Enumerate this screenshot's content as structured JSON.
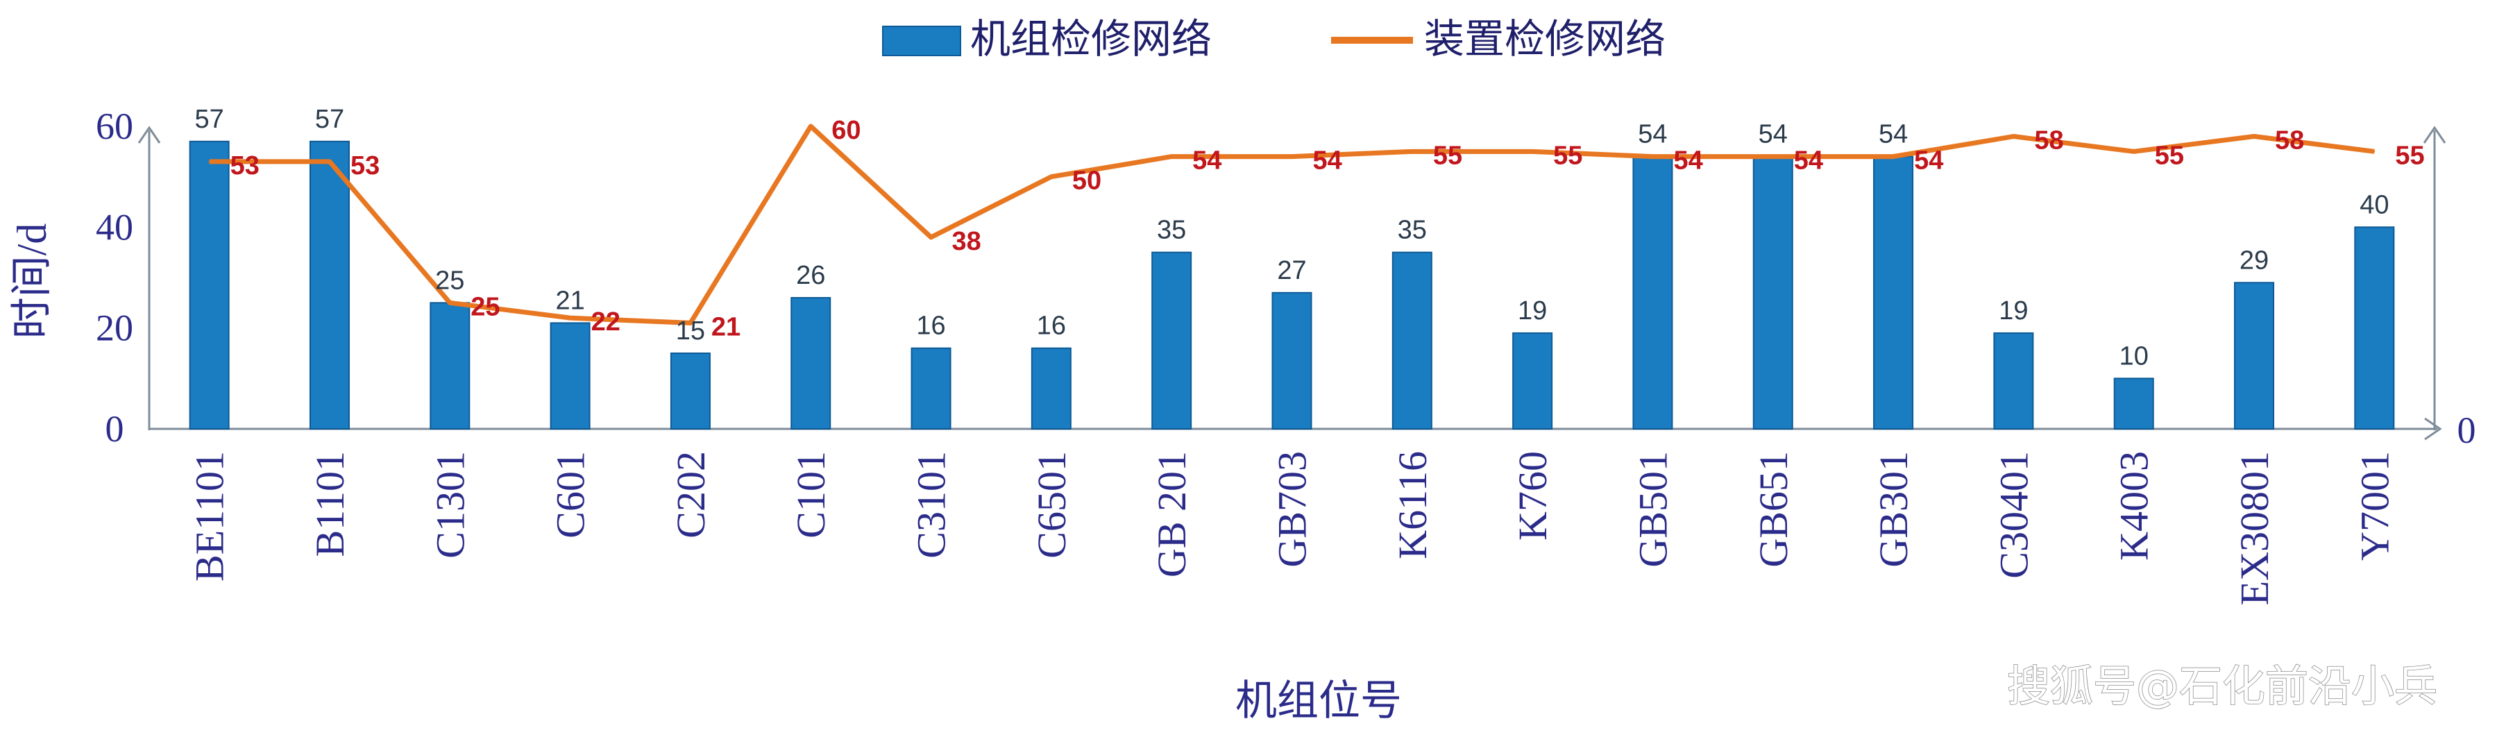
{
  "chart_data": {
    "type": "bar",
    "categories": [
      "BE1101",
      "B1101",
      "C1301",
      "C601",
      "C202",
      "C101",
      "C3101",
      "C6501",
      "GB 201",
      "GB703",
      "K6116",
      "K760",
      "GB501",
      "GB651",
      "GB301",
      "C30401",
      "K4003",
      "EX30801",
      "Y7001"
    ],
    "series": [
      {
        "name": "机组检修网络",
        "type": "bar",
        "color": "#1a7cc1",
        "values": [
          57,
          57,
          25,
          21,
          15,
          26,
          16,
          16,
          35,
          27,
          35,
          19,
          54,
          54,
          54,
          19,
          10,
          29,
          40
        ]
      },
      {
        "name": "装置检修网络",
        "type": "line",
        "color": "#e87722",
        "values": [
          53,
          53,
          25,
          22,
          21,
          60,
          38,
          50,
          54,
          54,
          55,
          55,
          54,
          54,
          54,
          58,
          55,
          58,
          55
        ]
      }
    ],
    "xlabel": "机组位号",
    "ylabel": "时间/d",
    "ylim": [
      0,
      60
    ],
    "yticks": [
      "0",
      "20",
      "40",
      "60"
    ],
    "secondary_axis_ticks": [
      "0"
    ],
    "legend_position": "top-center",
    "grid": false
  },
  "watermark": "搜狐号@石化前沿小兵"
}
